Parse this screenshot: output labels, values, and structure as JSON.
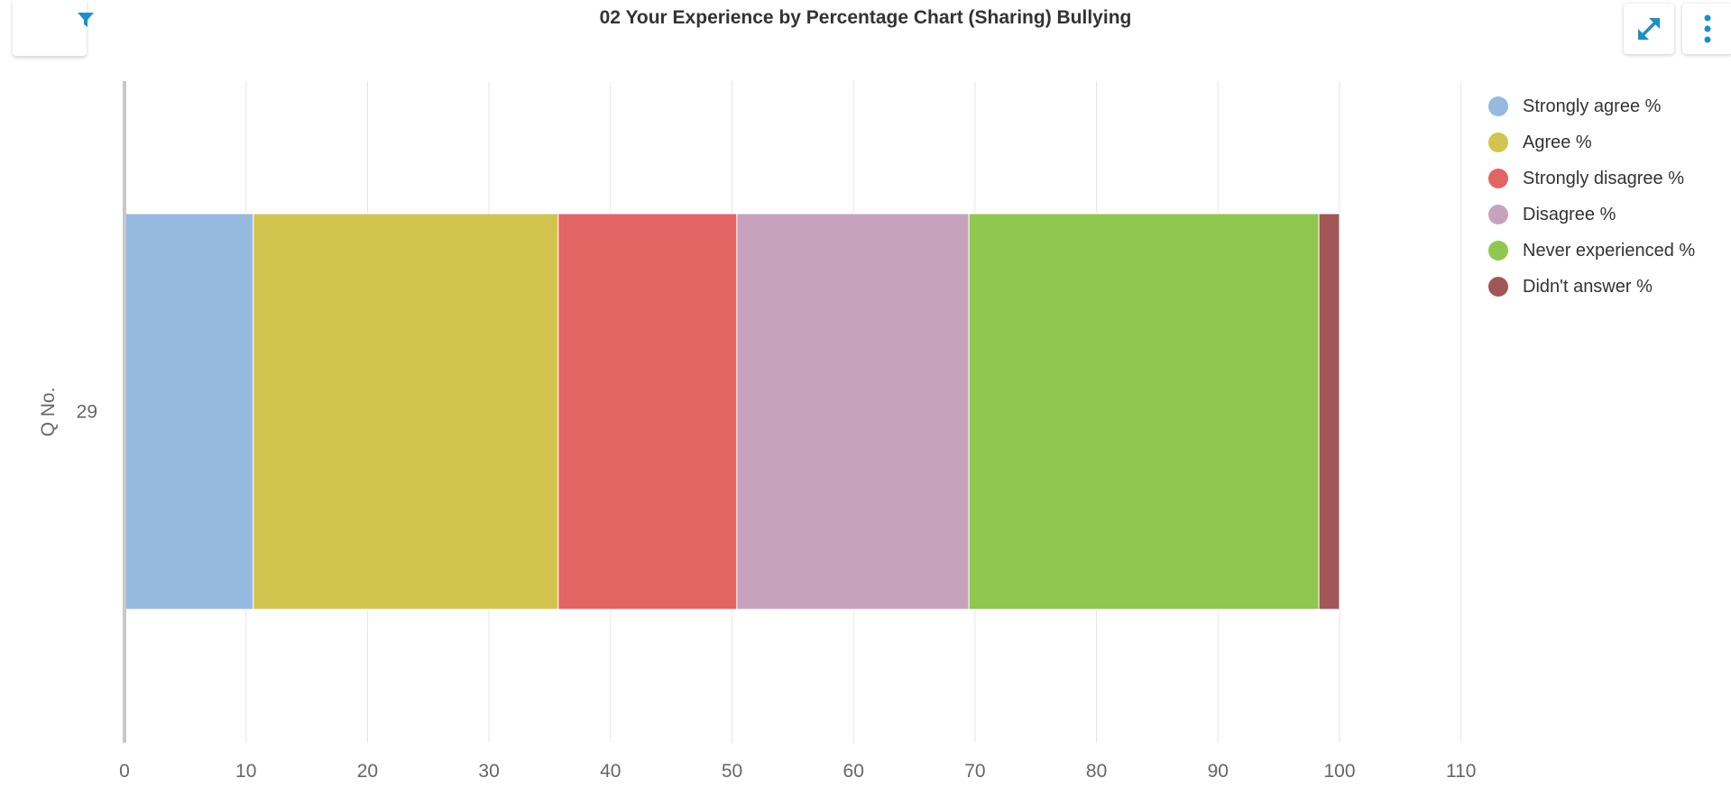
{
  "toolbar": {
    "filter_icon": "filter-icon",
    "expand_icon": "expand-icon",
    "menu_icon": "kebab-menu-icon",
    "accent": "#1a8fc9"
  },
  "chart_data": {
    "type": "bar",
    "orientation": "horizontal",
    "stacked": true,
    "title": "02 Your Experience by Percentage Chart (Sharing) Bullying",
    "ylabel": "Q No.",
    "xlabel": "",
    "categories": [
      "29"
    ],
    "xlim": [
      0,
      110
    ],
    "xticks": [
      "0",
      "10",
      "20",
      "30",
      "40",
      "50",
      "60",
      "70",
      "80",
      "90",
      "100",
      "110"
    ],
    "grid": true,
    "legend_position": "right",
    "series": [
      {
        "name": "Strongly agree %",
        "color": "#96b9e0",
        "values": [
          10.6
        ]
      },
      {
        "name": "Agree %",
        "color": "#d3c44f",
        "values": [
          25.1
        ]
      },
      {
        "name": "Strongly disagree %",
        "color": "#e46363",
        "values": [
          14.7
        ]
      },
      {
        "name": "Disagree %",
        "color": "#c7a2bd",
        "values": [
          19.1
        ]
      },
      {
        "name": "Never experienced %",
        "color": "#90c74f",
        "values": [
          28.8
        ]
      },
      {
        "name": "Didn't answer %",
        "color": "#a35656",
        "values": [
          1.7
        ]
      }
    ]
  }
}
